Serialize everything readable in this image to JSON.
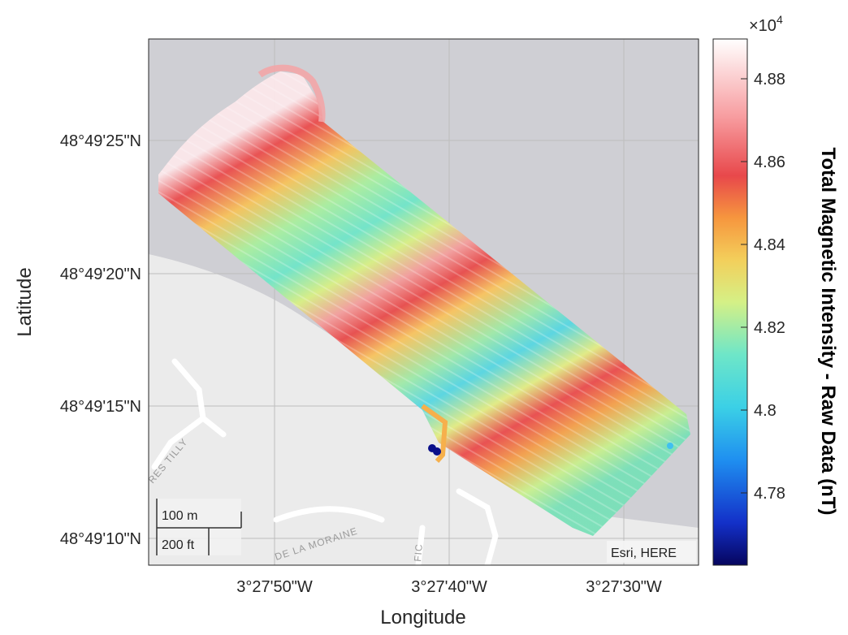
{
  "axes": {
    "xlabel": "Longitude",
    "ylabel": "Latitude",
    "x_ticks": [
      "3°27'50\"W",
      "3°27'40\"W",
      "3°27'30\"W"
    ],
    "y_ticks": [
      "48°49'25\"N",
      "48°49'20\"N",
      "48°49'15\"N",
      "48°49'10\"N"
    ]
  },
  "basemap": {
    "attribution": "Esri, HERE",
    "scalebar_metric": "100 m",
    "scalebar_imperial": "200 ft",
    "street_labels": [
      "RES TILLY",
      "DE LA MORAINE",
      "FIC"
    ],
    "land_color": "#ebebeb",
    "water_color": "#cfcfd4"
  },
  "colorbar": {
    "label": "Total Magnetic Intensity - Raw Data (nT)",
    "exponent_label": "×10",
    "exponent_power": "4",
    "ticks": [
      "4.88",
      "4.86",
      "4.84",
      "4.82",
      "4.8",
      "4.78"
    ],
    "colormap": "jet-like",
    "min_nT": 47630,
    "max_nT": 48890
  },
  "survey": {
    "description_values": {
      "high_band_color": "#e8484b",
      "low_band_color": "#7ee6c8"
    }
  }
}
